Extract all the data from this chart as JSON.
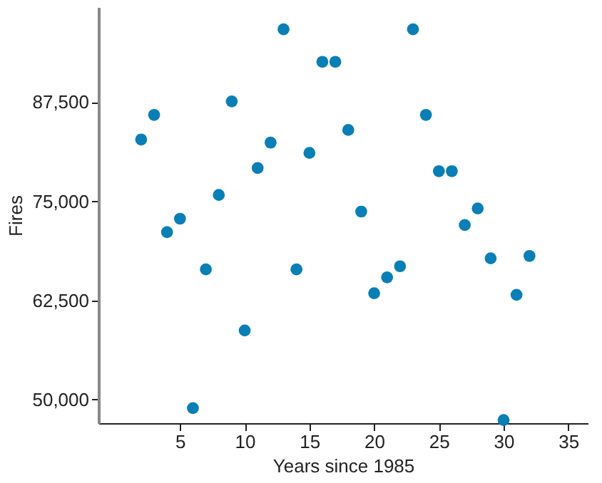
{
  "chart_data": {
    "type": "scatter",
    "xlabel": "Years since 1985",
    "ylabel": "Fires",
    "x": [
      2,
      3,
      4,
      5,
      6,
      7,
      8,
      9,
      10,
      11,
      12,
      13,
      14,
      15,
      16,
      17,
      18,
      19,
      20,
      21,
      22,
      23,
      24,
      25,
      26,
      27,
      28,
      29,
      30,
      31,
      32
    ],
    "series": [
      {
        "color": "#0a7fb5",
        "values": [
          82800,
          85900,
          71100,
          72800,
          48900,
          66400,
          75800,
          87600,
          58700,
          79200,
          82400,
          96700,
          66400,
          81100,
          92600,
          92600,
          84000,
          73700,
          63400,
          65400,
          66800,
          96700,
          85900,
          78800,
          78800,
          72000,
          74100,
          67800,
          47400,
          63200,
          68100
        ]
      }
    ],
    "xlim": [
      -1.3,
      36.5
    ],
    "xticks": [
      5,
      10,
      15,
      20,
      25,
      30,
      35
    ],
    "ylim": [
      47000,
      99500
    ],
    "yticks": [
      {
        "value": 50000,
        "label": "50,000"
      },
      {
        "value": 62500,
        "label": "62,500"
      },
      {
        "value": 75000,
        "label": "75,000"
      },
      {
        "value": 87500,
        "label": "87,500"
      }
    ],
    "marker": "circle",
    "grid": false
  }
}
